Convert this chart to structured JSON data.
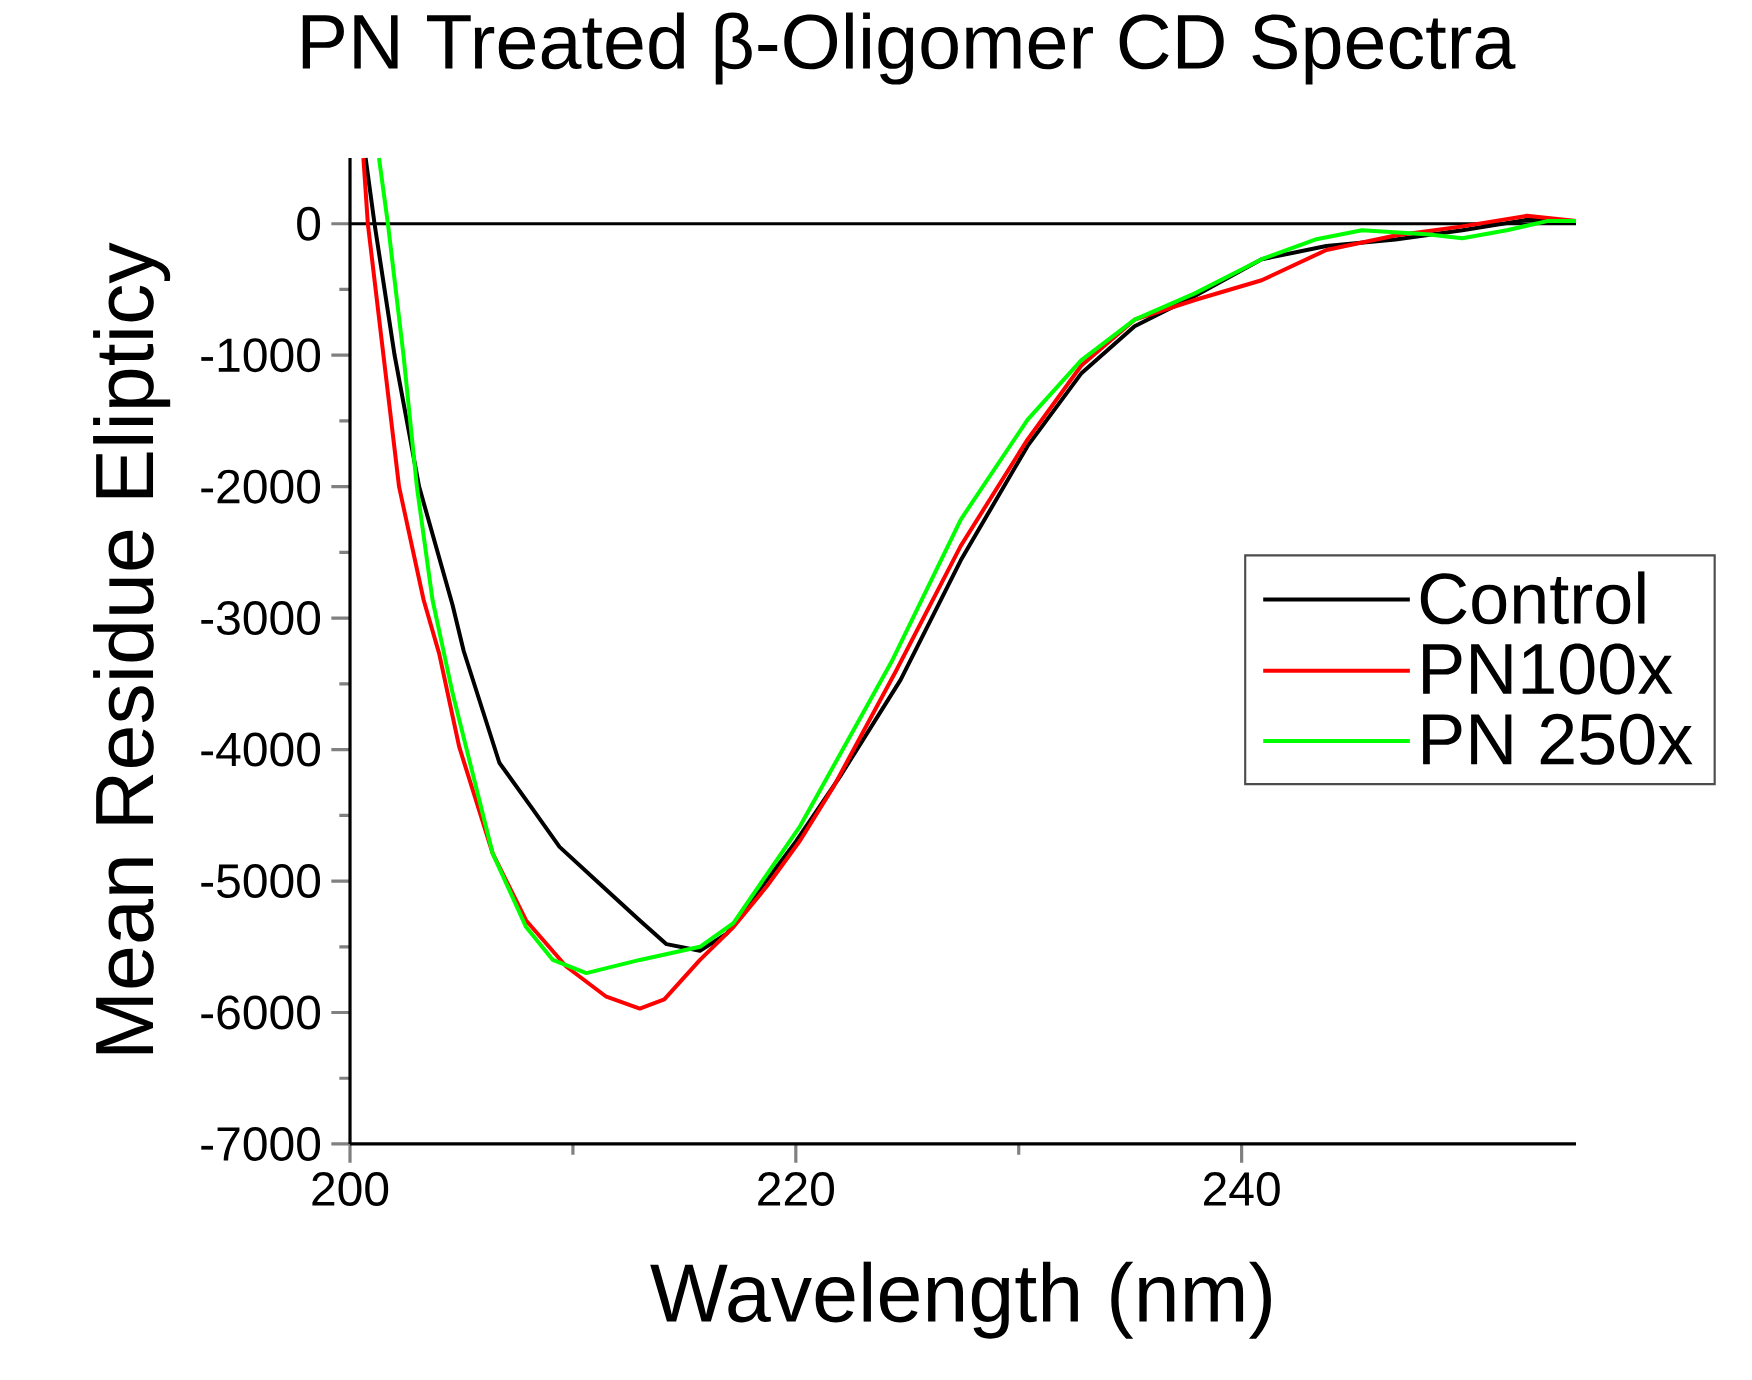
{
  "chart_data": {
    "type": "line",
    "title": "PN Treated β-Oligomer CD Spectra",
    "xlabel": "Wavelength (nm)",
    "ylabel": "Mean Residue Elipticy",
    "xlim": [
      200,
      255
    ],
    "ylim": [
      -7000,
      500
    ],
    "xticks": [
      200,
      220,
      240
    ],
    "yticks": [
      -7000,
      -6000,
      -5000,
      -4000,
      -3000,
      -2000,
      -1000,
      0
    ],
    "grid": false,
    "legend": "right",
    "line_style": "solid",
    "marker": "none",
    "ref_lines": [
      {
        "axis": "y",
        "value": 0,
        "color": "#000000"
      }
    ],
    "series": [
      {
        "name": "Control",
        "color": "#000000",
        "x": [
          200.7,
          201.1,
          202.0,
          203.1,
          204.6,
          205.1,
          206.7,
          208.1,
          209.4,
          211.2,
          213.0,
          214.2,
          215.7,
          216.9,
          218.0,
          220.0,
          222.0,
          224.7,
          227.4,
          230.4,
          232.8,
          235.2,
          237.9,
          240.9,
          243.8,
          246.9,
          249.9,
          252.8,
          255.0
        ],
        "values": [
          500,
          0,
          -1000,
          -2000,
          -2900,
          -3250,
          -4100,
          -4430,
          -4740,
          -5020,
          -5300,
          -5480,
          -5530,
          -5400,
          -5150,
          -4700,
          -4200,
          -3470,
          -2560,
          -1690,
          -1140,
          -780,
          -550,
          -270,
          -170,
          -120,
          -50,
          30,
          20
        ]
      },
      {
        "name": "PN100x",
        "color": "#ff0000",
        "x": [
          200.6,
          200.8,
          201.5,
          202.2,
          203.3,
          204.0,
          204.9,
          206.4,
          207.9,
          209.7,
          211.5,
          213.0,
          214.1,
          215.7,
          217.2,
          218.7,
          220.2,
          221.7,
          224.5,
          227.4,
          230.4,
          232.8,
          235.2,
          237.9,
          240.9,
          243.8,
          246.9,
          249.9,
          252.8,
          255.0
        ],
        "values": [
          500,
          0,
          -1000,
          -2000,
          -2860,
          -3270,
          -3980,
          -4790,
          -5300,
          -5650,
          -5880,
          -5970,
          -5900,
          -5600,
          -5350,
          -5040,
          -4690,
          -4280,
          -3400,
          -2450,
          -1640,
          -1080,
          -730,
          -580,
          -430,
          -200,
          -90,
          -20,
          60,
          20
        ]
      },
      {
        "name": "PN 250x",
        "color": "#00ff00",
        "x": [
          201.3,
          201.7,
          202.4,
          203.0,
          203.7,
          204.6,
          206.4,
          207.9,
          209.1,
          210.6,
          213.0,
          215.7,
          217.2,
          220.2,
          224.3,
          227.4,
          230.4,
          232.8,
          235.2,
          237.9,
          240.9,
          243.3,
          245.4,
          248.3,
          249.9,
          251.9,
          253.7,
          255.0
        ],
        "values": [
          500,
          0,
          -1000,
          -2000,
          -2860,
          -3570,
          -4790,
          -5350,
          -5600,
          -5700,
          -5600,
          -5500,
          -5320,
          -4580,
          -3330,
          -2250,
          -1490,
          -1040,
          -730,
          -530,
          -270,
          -120,
          -50,
          -80,
          -110,
          -50,
          20,
          20
        ]
      }
    ]
  }
}
